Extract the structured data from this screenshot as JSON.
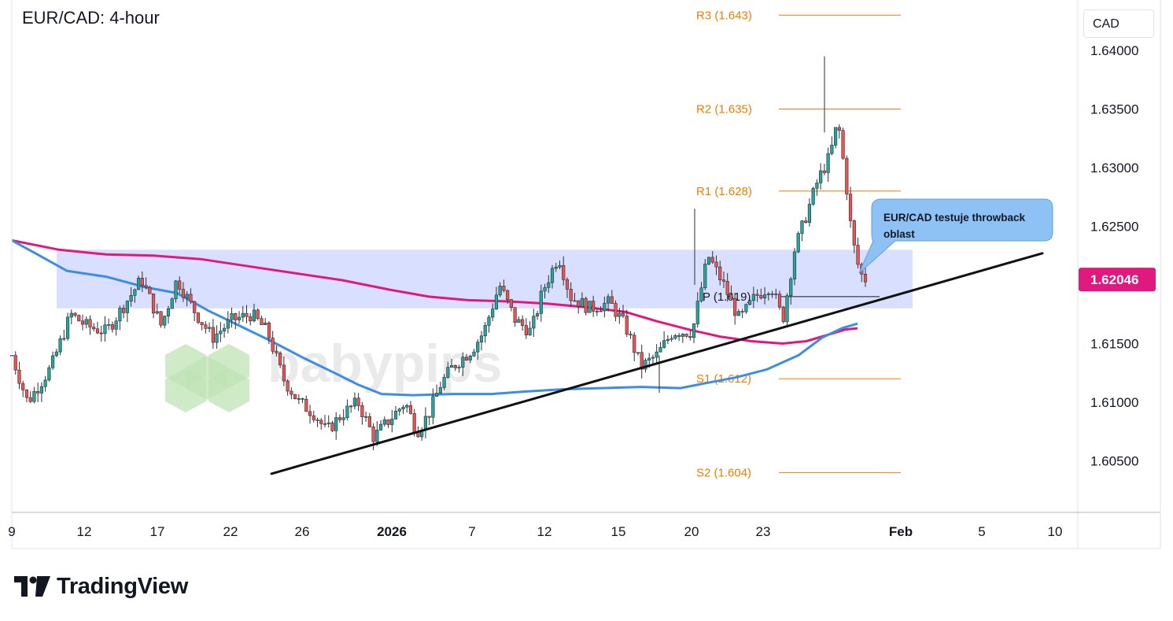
{
  "title": "EUR/CAD: 4-hour",
  "currency": "CAD",
  "brand": "TradingView",
  "watermark": "babypips",
  "colors": {
    "up": "#26a69a",
    "down": "#ef5350",
    "ema_fast": "#3d8de4",
    "ema_slow": "#e0197e",
    "pivot": "#f57c00",
    "zone": "rgba(170,187,255,0.45)",
    "trendline": "#111111",
    "price_tag": "#e0197e",
    "annotation": "#8ec2f5"
  },
  "chart_data": {
    "type": "candlestick",
    "title": "EUR/CAD: 4-hour",
    "y_ticks": [
      "1.64000",
      "1.63500",
      "1.63000",
      "1.62500",
      "1.62000",
      "1.61500",
      "1.61000",
      "1.60500"
    ],
    "y_tick_values": [
      1.64,
      1.635,
      1.63,
      1.625,
      1.62,
      1.615,
      1.61,
      1.605
    ],
    "ylim": [
      1.6,
      1.644
    ],
    "x_ticks": [
      "9",
      "12",
      "17",
      "22",
      "26",
      "2026",
      "7",
      "12",
      "15",
      "20",
      "23",
      "Feb",
      "5",
      "10"
    ],
    "current_price": "1.62046",
    "pivot_levels": [
      {
        "label": "R3 (1.643)",
        "value": 1.643
      },
      {
        "label": "R2 (1.635)",
        "value": 1.635
      },
      {
        "label": "R1 (1.628)",
        "value": 1.628
      },
      {
        "label": "P (1.619)",
        "value": 1.619
      },
      {
        "label": "S1 (1.612)",
        "value": 1.612
      },
      {
        "label": "S2 (1.604)",
        "value": 1.604
      }
    ],
    "zone": {
      "low": 1.618,
      "high": 1.623
    },
    "ema_fast_points": [
      [
        0,
        1.6238
      ],
      [
        30,
        1.6227
      ],
      [
        70,
        1.6212
      ],
      [
        120,
        1.6207
      ],
      [
        170,
        1.6198
      ],
      [
        210,
        1.6193
      ],
      [
        250,
        1.6178
      ],
      [
        290,
        1.6165
      ],
      [
        330,
        1.6152
      ],
      [
        370,
        1.6138
      ],
      [
        410,
        1.6125
      ],
      [
        440,
        1.6115
      ],
      [
        470,
        1.6107
      ],
      [
        510,
        1.6106
      ],
      [
        560,
        1.6107
      ],
      [
        610,
        1.6107
      ],
      [
        650,
        1.6109
      ],
      [
        700,
        1.6111
      ],
      [
        750,
        1.6112
      ],
      [
        800,
        1.6113
      ],
      [
        850,
        1.6112
      ],
      [
        880,
        1.6116
      ],
      [
        920,
        1.6121
      ],
      [
        960,
        1.6128
      ],
      [
        1000,
        1.614
      ],
      [
        1030,
        1.6155
      ],
      [
        1055,
        1.6163
      ],
      [
        1075,
        1.6167
      ]
    ],
    "ema_slow_points": [
      [
        0,
        1.6238
      ],
      [
        60,
        1.623
      ],
      [
        120,
        1.6226
      ],
      [
        180,
        1.6225
      ],
      [
        240,
        1.6222
      ],
      [
        300,
        1.6216
      ],
      [
        360,
        1.621
      ],
      [
        420,
        1.6204
      ],
      [
        480,
        1.6196
      ],
      [
        530,
        1.619
      ],
      [
        580,
        1.6187
      ],
      [
        630,
        1.6186
      ],
      [
        680,
        1.6184
      ],
      [
        730,
        1.6181
      ],
      [
        780,
        1.6177
      ],
      [
        820,
        1.6169
      ],
      [
        860,
        1.6162
      ],
      [
        900,
        1.6156
      ],
      [
        940,
        1.6152
      ],
      [
        980,
        1.615
      ],
      [
        1010,
        1.6152
      ],
      [
        1040,
        1.6158
      ],
      [
        1060,
        1.6162
      ],
      [
        1075,
        1.6163
      ]
    ],
    "trendline": {
      "start": [
        330,
        1.6039
      ],
      "end": [
        1310,
        1.6227
      ]
    },
    "candle_count": 230,
    "key_points": [
      [
        0,
        1.614
      ],
      [
        20,
        1.61
      ],
      [
        50,
        1.613
      ],
      [
        75,
        1.6175
      ],
      [
        95,
        1.6165
      ],
      [
        120,
        1.616
      ],
      [
        140,
        1.618
      ],
      [
        165,
        1.6205
      ],
      [
        190,
        1.6165
      ],
      [
        210,
        1.6205
      ],
      [
        230,
        1.618
      ],
      [
        255,
        1.6155
      ],
      [
        280,
        1.617
      ],
      [
        305,
        1.6175
      ],
      [
        325,
        1.616
      ],
      [
        345,
        1.612
      ],
      [
        365,
        1.61
      ],
      [
        385,
        1.609
      ],
      [
        400,
        1.6075
      ],
      [
        420,
        1.609
      ],
      [
        440,
        1.61
      ],
      [
        460,
        1.607
      ],
      [
        480,
        1.6085
      ],
      [
        500,
        1.61
      ],
      [
        515,
        1.6075
      ],
      [
        530,
        1.609
      ],
      [
        545,
        1.6115
      ],
      [
        560,
        1.613
      ],
      [
        585,
        1.6145
      ],
      [
        600,
        1.616
      ],
      [
        620,
        1.62
      ],
      [
        640,
        1.617
      ],
      [
        660,
        1.616
      ],
      [
        675,
        1.6195
      ],
      [
        695,
        1.6225
      ],
      [
        710,
        1.619
      ],
      [
        735,
        1.618
      ],
      [
        760,
        1.6185
      ],
      [
        780,
        1.6165
      ],
      [
        800,
        1.613
      ],
      [
        820,
        1.614
      ],
      [
        840,
        1.616
      ],
      [
        865,
        1.616
      ],
      [
        885,
        1.6225
      ],
      [
        905,
        1.62
      ],
      [
        925,
        1.617
      ],
      [
        945,
        1.619
      ],
      [
        965,
        1.62
      ],
      [
        980,
        1.617
      ],
      [
        995,
        1.623
      ],
      [
        1010,
        1.626
      ],
      [
        1025,
        1.629
      ],
      [
        1040,
        1.631
      ],
      [
        1050,
        1.634
      ],
      [
        1060,
        1.629
      ],
      [
        1068,
        1.624
      ],
      [
        1078,
        1.621
      ],
      [
        1085,
        1.6205
      ]
    ],
    "annotation": "EUR/CAD testuje throwback oblast"
  }
}
